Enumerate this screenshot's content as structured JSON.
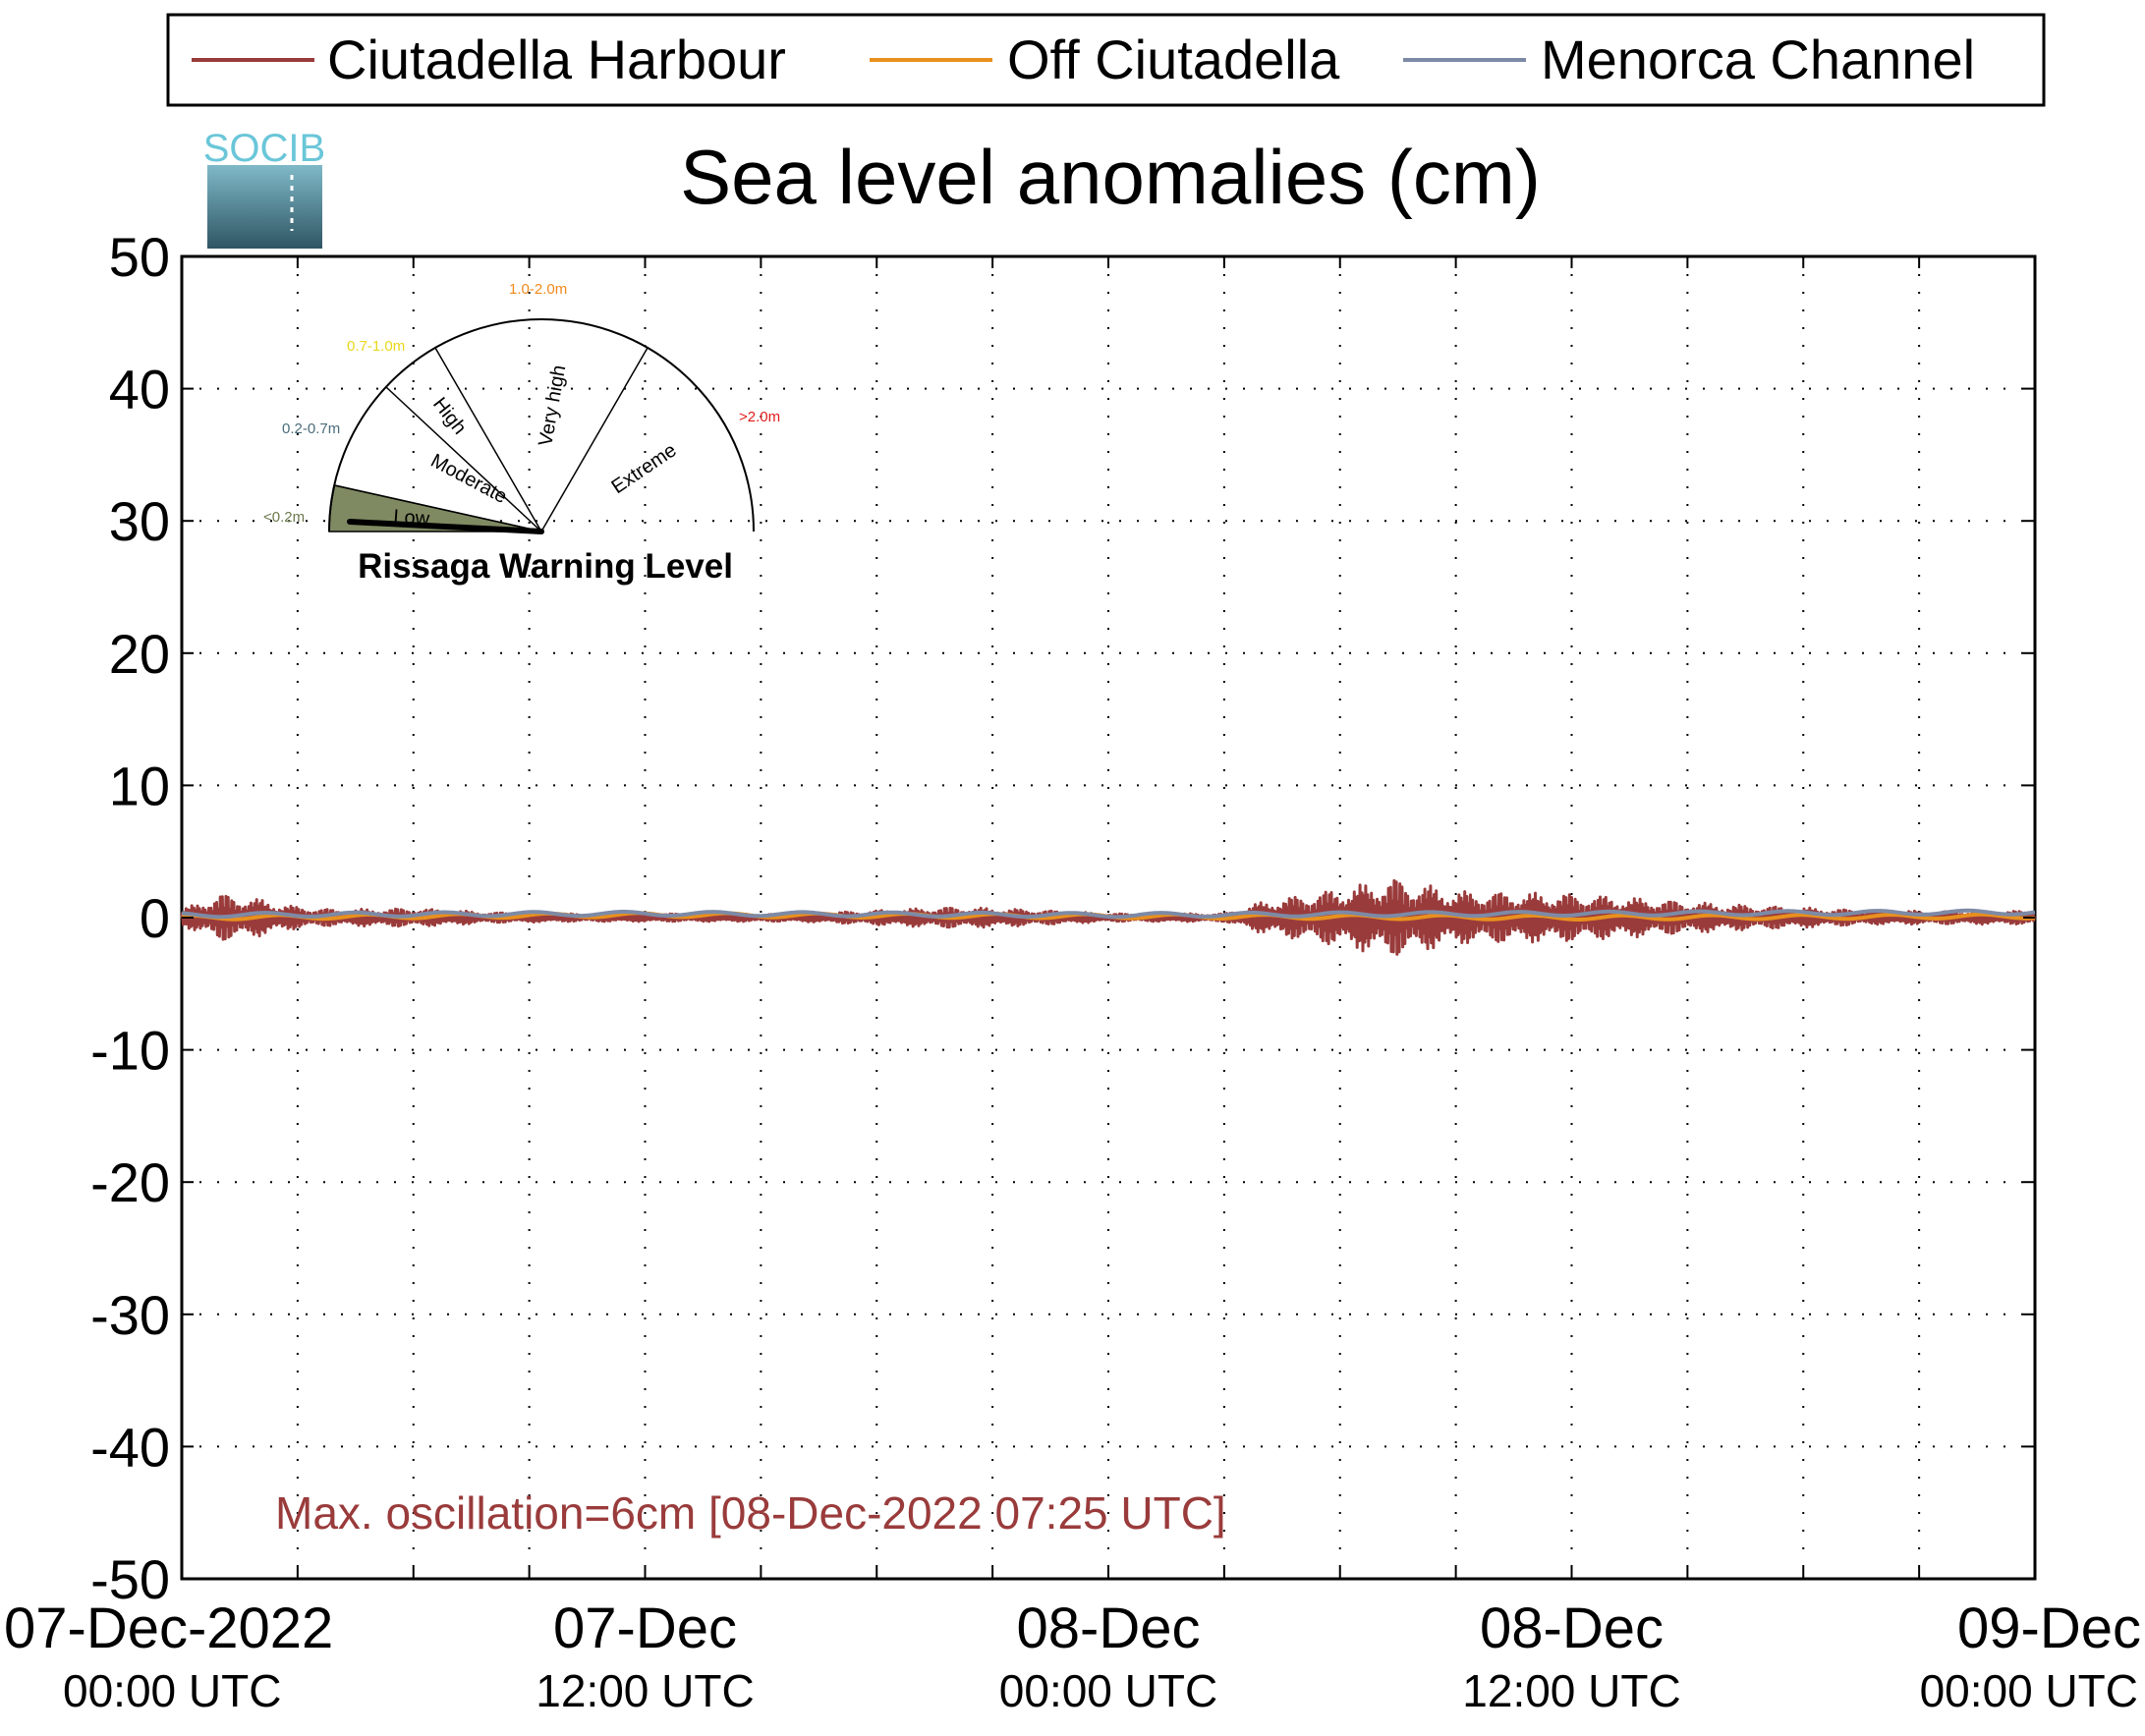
{
  "legend": {
    "items": [
      {
        "label": "Ciutadella Harbour",
        "color": "#9a3b3b"
      },
      {
        "label": "Off Ciutadella",
        "color": "#e8901e"
      },
      {
        "label": "Menorca Channel",
        "color": "#7d8aa6"
      }
    ]
  },
  "logo": {
    "text": "SOCIB"
  },
  "gauge": {
    "title": "Rissaga Warning Level",
    "sectors": [
      {
        "name": "Low",
        "range": "<0.2m",
        "range_color": "#6b7a4d"
      },
      {
        "name": "Moderate",
        "range": "0.2-0.7m",
        "range_color": "#4a6d7a"
      },
      {
        "name": "High",
        "range": "0.7-1.0m",
        "range_color": "#e8d81c"
      },
      {
        "name": "Very high",
        "range": "1.0-2.0m",
        "range_color": "#f08a1c"
      },
      {
        "name": "Extreme",
        "range": ">2.0m",
        "range_color": "#e01b1b"
      }
    ],
    "active_level": "Low"
  },
  "annotation": {
    "text": "Max. oscillation=6cm [08-Dec-2022 07:25 UTC]",
    "color": "#9a3b3b"
  },
  "chart_data": {
    "type": "line",
    "title": "Sea level anomalies (cm)",
    "ylim": [
      -50,
      50
    ],
    "yticks": [
      "50",
      "40",
      "30",
      "20",
      "10",
      "0",
      "-10",
      "-20",
      "-30",
      "-40",
      "-50"
    ],
    "xlim": [
      "2022-12-07 00:00",
      "2022-12-09 00:00"
    ],
    "xticks": [
      {
        "date": "07-Dec-2022",
        "time": "00:00 UTC"
      },
      {
        "date": "07-Dec",
        "time": "12:00 UTC"
      },
      {
        "date": "08-Dec",
        "time": "00:00 UTC"
      },
      {
        "date": "08-Dec",
        "time": "12:00 UTC"
      },
      {
        "date": "09-Dec",
        "time": "00:00 UTC"
      }
    ],
    "grid": true,
    "legend_position": "top",
    "series": [
      {
        "name": "Ciutadella Harbour",
        "color": "#9a3b3b",
        "x": [
          "2022-12-07 00:00",
          "2022-12-07 01:00",
          "2022-12-07 02:00",
          "2022-12-07 03:00",
          "2022-12-07 04:00",
          "2022-12-07 06:00",
          "2022-12-07 08:00",
          "2022-12-07 10:00",
          "2022-12-07 12:00",
          "2022-12-07 16:00",
          "2022-12-07 20:00",
          "2022-12-07 22:00",
          "2022-12-08 00:00",
          "2022-12-08 03:00",
          "2022-12-08 04:00",
          "2022-12-08 06:00",
          "2022-12-08 07:25",
          "2022-12-08 09:00",
          "2022-12-08 12:00",
          "2022-12-08 14:00",
          "2022-12-08 16:00",
          "2022-12-08 20:00",
          "2022-12-09 00:00"
        ],
        "amplitude": [
          0.6,
          1.8,
          1.4,
          0.8,
          0.6,
          0.7,
          0.4,
          0.3,
          0.3,
          0.3,
          0.8,
          0.6,
          0.3,
          0.3,
          1.2,
          2.2,
          3.0,
          2.0,
          1.8,
          1.4,
          1.0,
          0.5,
          0.5
        ]
      },
      {
        "name": "Off Ciutadella",
        "color": "#e8901e",
        "x": [
          "2022-12-07 00:00",
          "2022-12-07 12:00",
          "2022-12-08 00:00",
          "2022-12-08 12:00",
          "2022-12-09 00:00"
        ],
        "values": [
          0.0,
          0.2,
          0.1,
          0.0,
          0.1
        ]
      },
      {
        "name": "Menorca Channel",
        "color": "#7d8aa6",
        "x": [
          "2022-12-07 00:00",
          "2022-12-07 12:00",
          "2022-12-08 00:00",
          "2022-12-08 12:00",
          "2022-12-09 00:00"
        ],
        "values": [
          0.2,
          0.3,
          0.2,
          0.3,
          0.4
        ]
      }
    ]
  }
}
